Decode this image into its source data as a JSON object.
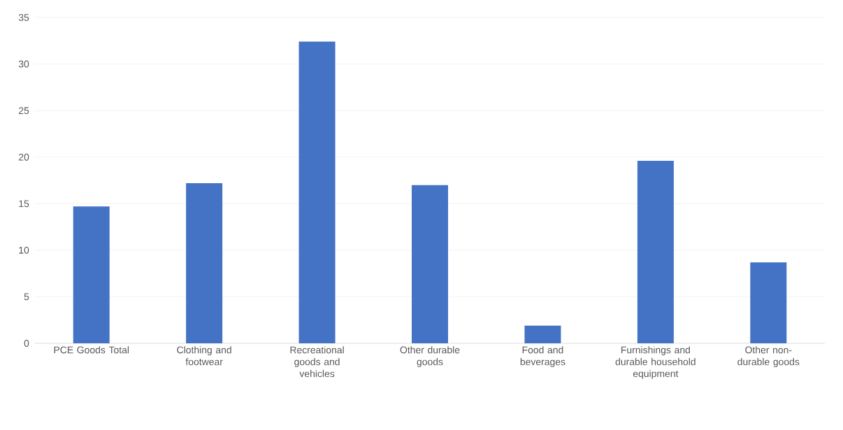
{
  "chart_data": {
    "type": "bar",
    "categories": [
      "PCE Goods Total",
      "Clothing and footwear",
      "Recreational goods and vehicles",
      "Other durable goods",
      "Food and beverages",
      "Furnishings and durable household equipment",
      "Other non-durable goods"
    ],
    "values": [
      14.7,
      17.2,
      32.4,
      17.0,
      1.9,
      19.6,
      8.7
    ],
    "color": "#4472c4",
    "ylim": [
      0,
      35
    ],
    "yticks": [
      0,
      5,
      10,
      15,
      20,
      25,
      30,
      35
    ],
    "grid": "y"
  }
}
